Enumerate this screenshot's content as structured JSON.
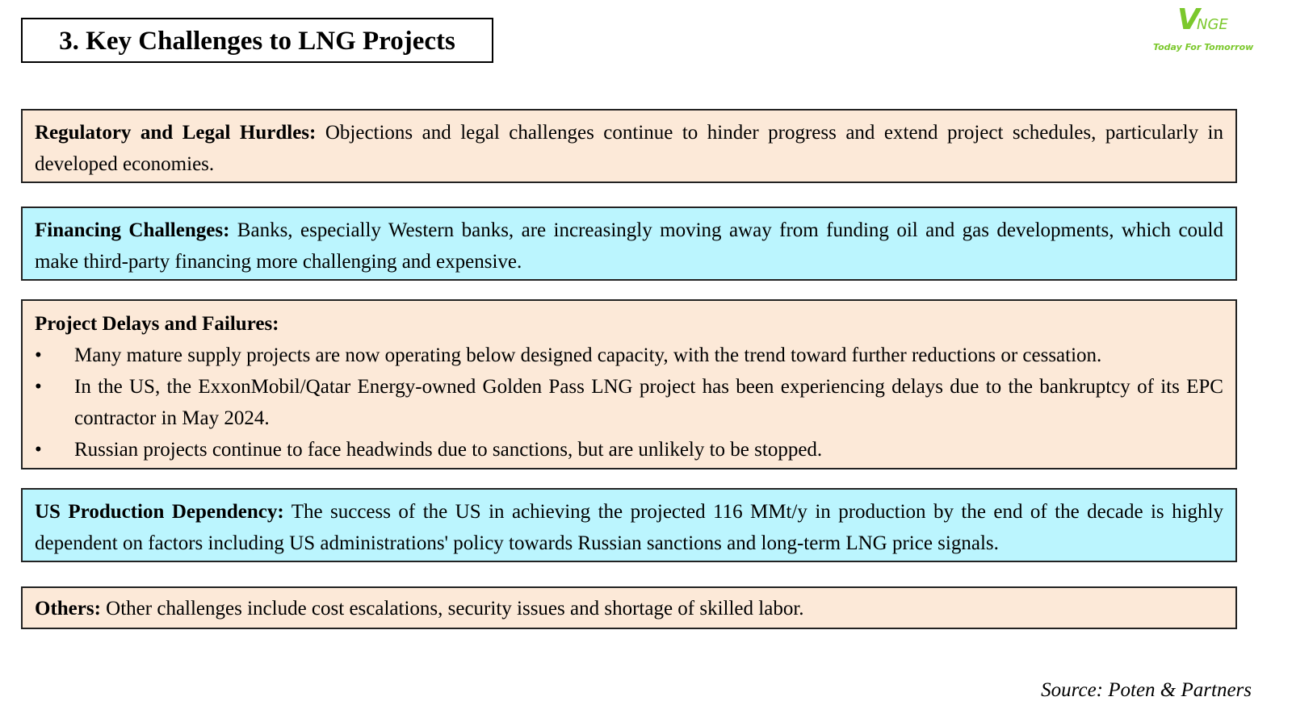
{
  "title": "3. Key Challenges to LNG Projects",
  "logo": {
    "text": "VNGE",
    "tagline": "Today For Tomorrow",
    "color": "#7bc82c"
  },
  "colors": {
    "peach": "#fce9d8",
    "cyan": "#bbf5fe"
  },
  "sections": [
    {
      "heading": "Regulatory and Legal Hurdles:",
      "text": " Objections and legal challenges continue to hinder progress and extend project schedules, particularly in developed economies."
    },
    {
      "heading": "Financing Challenges:",
      "text": " Banks, especially Western banks, are increasingly moving away from funding oil and gas developments, which could make third-party financing more challenging and expensive."
    },
    {
      "heading": "Project Delays and Failures:",
      "bullets": [
        "Many mature supply projects are now operating below designed capacity, with the trend toward further reductions or cessation.",
        "In the US, the ExxonMobil/Qatar Energy-owned Golden Pass LNG project has been experiencing delays due to the bankruptcy of its EPC contractor in May 2024.",
        "Russian projects continue to face headwinds due to sanctions, but are unlikely to be stopped."
      ]
    },
    {
      "heading": "US Production Dependency:",
      "text": " The success of the US in achieving the projected 116 MMt/y in production by the end of the decade is highly dependent on factors including US administrations' policy towards Russian sanctions and long-term LNG price signals."
    },
    {
      "heading": "Others:",
      "text": " Other challenges include cost escalations, security issues and shortage of skilled labor."
    }
  ],
  "bullet_char": "•",
  "source": "Source: Poten & Partners"
}
